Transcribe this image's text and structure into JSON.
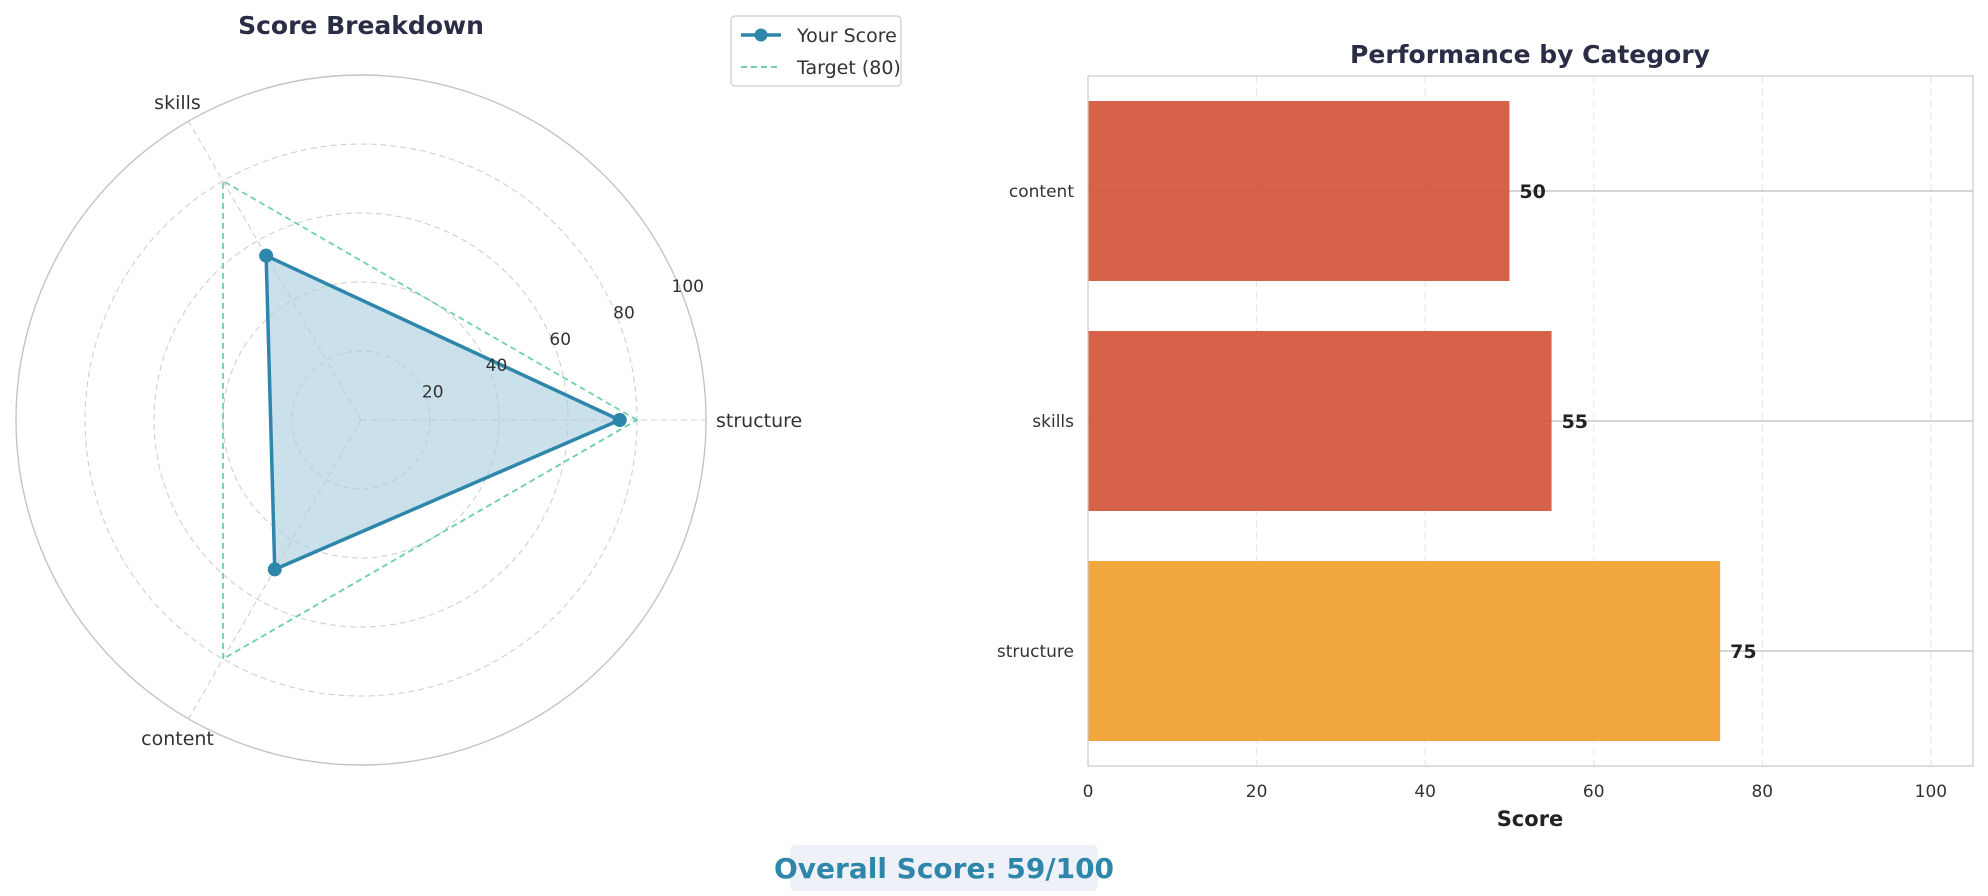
{
  "chart_data": [
    {
      "type": "radar",
      "title": "Score Breakdown",
      "categories": [
        "structure",
        "skills",
        "content"
      ],
      "series": [
        {
          "name": "Your Score",
          "values": [
            75,
            55,
            50
          ],
          "color": "#2e86ab",
          "fill": "#a9cfdf"
        },
        {
          "name": "Target (80)",
          "values": [
            80,
            80,
            80
          ],
          "color": "#6fcfad",
          "dashed": true
        }
      ],
      "radial_ticks": [
        "20",
        "40",
        "60",
        "80",
        "100"
      ],
      "rlim": [
        0,
        100
      ],
      "legend": "top-right"
    },
    {
      "type": "bar",
      "orientation": "horizontal",
      "title": "Performance by Category",
      "categories": [
        "content",
        "skills",
        "structure"
      ],
      "values": [
        50,
        55,
        75
      ],
      "value_labels": [
        "50",
        "55",
        "75"
      ],
      "colors": [
        "#d1553a",
        "#d1553a",
        "#f0a02a"
      ],
      "xlabel": "Score",
      "ylabel": "",
      "xlim": [
        0,
        105
      ],
      "xticks": [
        "0",
        "20",
        "40",
        "60",
        "80",
        "100"
      ],
      "grid": true
    }
  ],
  "summary": {
    "overall_label": "Overall Score: 59/100",
    "accent_color": "#2e86ab"
  }
}
